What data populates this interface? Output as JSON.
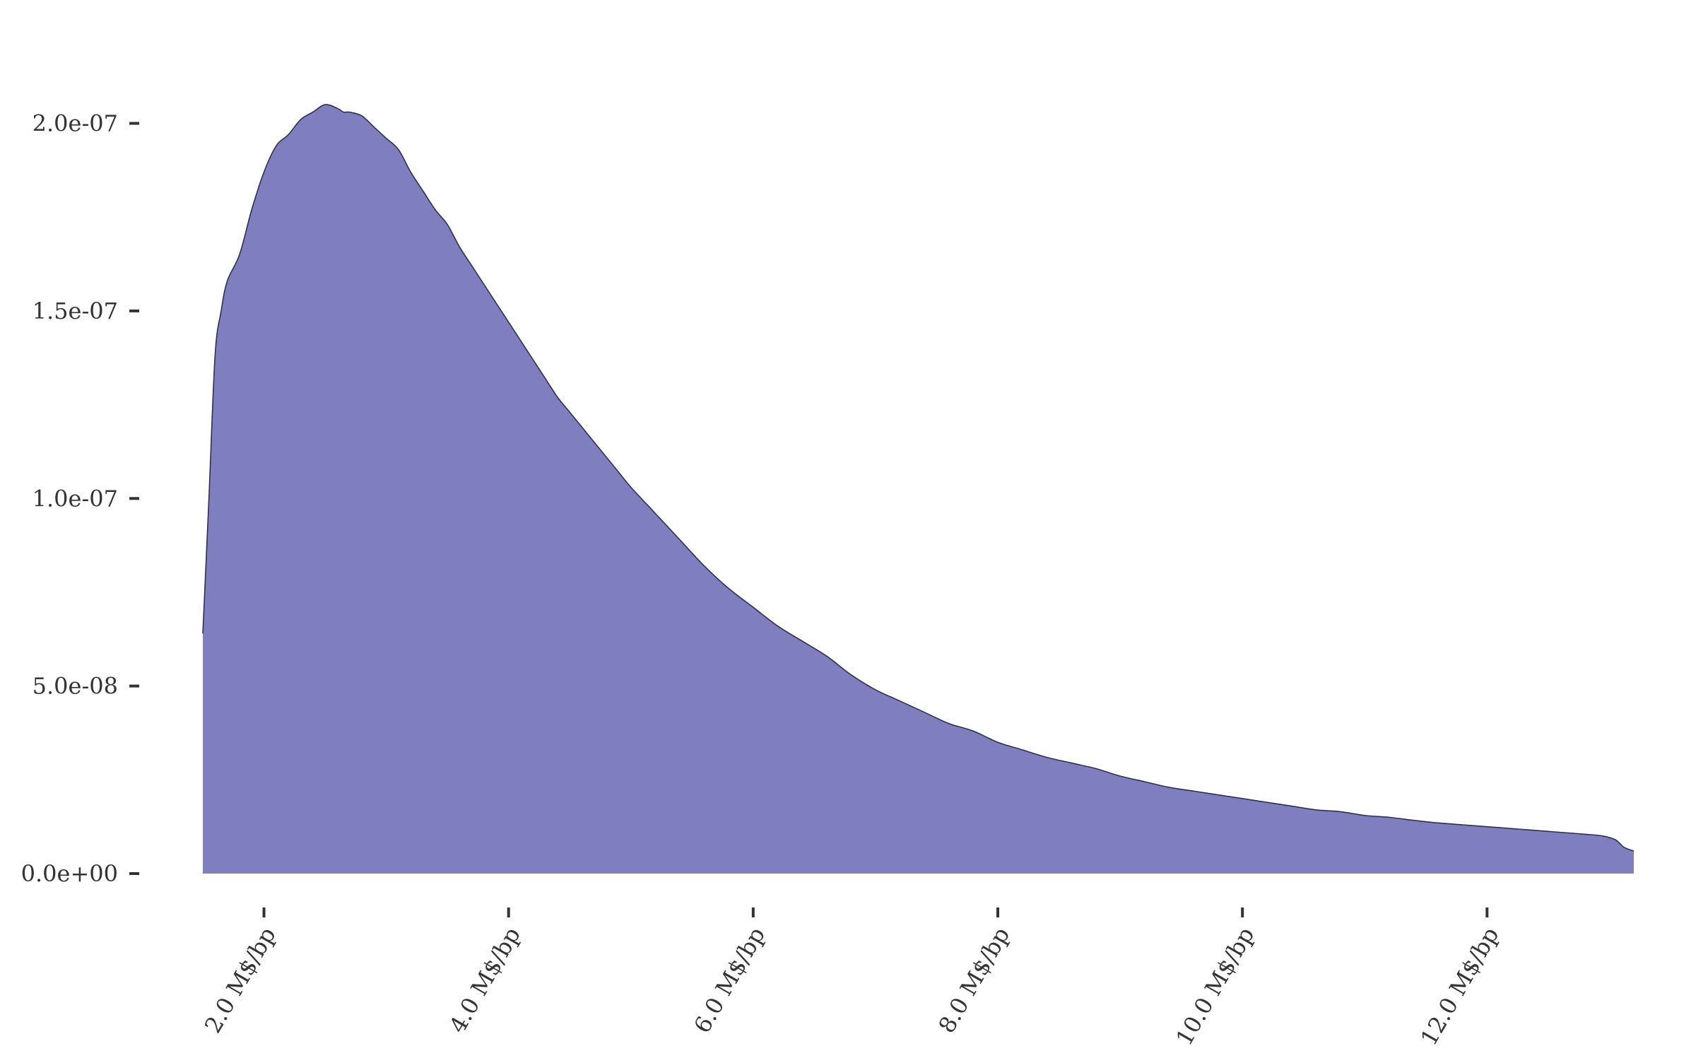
{
  "chart_data": {
    "type": "area",
    "title": "",
    "xlabel": "",
    "ylabel": "",
    "xlim": [
      1.5,
      13.2
    ],
    "ylim": [
      0,
      2.05e-07
    ],
    "fill_color": "#7f7fbf",
    "stroke_color": "#2f2f4f",
    "grid": false,
    "legend": "none",
    "x_ticks": [
      {
        "value": 2,
        "label": "2.0 M$/bp"
      },
      {
        "value": 4,
        "label": "4.0 M$/bp"
      },
      {
        "value": 6,
        "label": "6.0 M$/bp"
      },
      {
        "value": 8,
        "label": "8.0 M$/bp"
      },
      {
        "value": 10,
        "label": "10.0 M$/bp"
      },
      {
        "value": 12,
        "label": "12.0 M$/bp"
      }
    ],
    "y_ticks": [
      {
        "value": 0,
        "label": "0.0e+00"
      },
      {
        "value": 5e-08,
        "label": "5.0e-08"
      },
      {
        "value": 1e-07,
        "label": "1.0e-07"
      },
      {
        "value": 1.5e-07,
        "label": "1.5e-07"
      },
      {
        "value": 2e-07,
        "label": "2.0e-07"
      }
    ],
    "x": [
      1.5,
      1.55,
      1.6,
      1.65,
      1.7,
      1.8,
      1.9,
      2.0,
      2.1,
      2.2,
      2.3,
      2.4,
      2.5,
      2.6,
      2.65,
      2.7,
      2.8,
      2.9,
      3.0,
      3.1,
      3.2,
      3.3,
      3.4,
      3.5,
      3.6,
      3.7,
      3.8,
      3.9,
      4.0,
      4.1,
      4.2,
      4.3,
      4.4,
      4.5,
      4.6,
      4.7,
      4.8,
      4.9,
      5.0,
      5.2,
      5.4,
      5.6,
      5.8,
      6.0,
      6.2,
      6.4,
      6.6,
      6.8,
      7.0,
      7.2,
      7.4,
      7.6,
      7.8,
      8.0,
      8.2,
      8.4,
      8.6,
      8.8,
      9.0,
      9.2,
      9.4,
      9.6,
      9.8,
      10.0,
      10.2,
      10.4,
      10.6,
      10.8,
      11.0,
      11.2,
      11.4,
      11.6,
      11.8,
      12.0,
      12.2,
      12.4,
      12.6,
      12.8,
      12.95,
      13.05,
      13.12,
      13.2
    ],
    "values": [
      6.4e-08,
      1e-07,
      1.38e-07,
      1.5e-07,
      1.58e-07,
      1.65e-07,
      1.77e-07,
      1.87e-07,
      1.94e-07,
      1.97e-07,
      2.01e-07,
      2.03e-07,
      2.05e-07,
      2.04e-07,
      2.03e-07,
      2.03e-07,
      2.02e-07,
      1.99e-07,
      1.96e-07,
      1.93e-07,
      1.87e-07,
      1.82e-07,
      1.77e-07,
      1.73e-07,
      1.67e-07,
      1.62e-07,
      1.57e-07,
      1.52e-07,
      1.47e-07,
      1.42e-07,
      1.37e-07,
      1.32e-07,
      1.27e-07,
      1.23e-07,
      1.19e-07,
      1.15e-07,
      1.11e-07,
      1.07e-07,
      1.03e-07,
      9.6e-08,
      8.9e-08,
      8.2e-08,
      7.6e-08,
      7.1e-08,
      6.6e-08,
      6.2e-08,
      5.8e-08,
      5.3e-08,
      4.9e-08,
      4.6e-08,
      4.3e-08,
      4e-08,
      3.8e-08,
      3.5e-08,
      3.3e-08,
      3.1e-08,
      2.95e-08,
      2.8e-08,
      2.6e-08,
      2.45e-08,
      2.3e-08,
      2.2e-08,
      2.1e-08,
      2e-08,
      1.9e-08,
      1.8e-08,
      1.7e-08,
      1.65e-08,
      1.55e-08,
      1.5e-08,
      1.42e-08,
      1.35e-08,
      1.3e-08,
      1.25e-08,
      1.2e-08,
      1.15e-08,
      1.1e-08,
      1.05e-08,
      1e-08,
      9e-09,
      7e-09,
      6e-09
    ]
  }
}
